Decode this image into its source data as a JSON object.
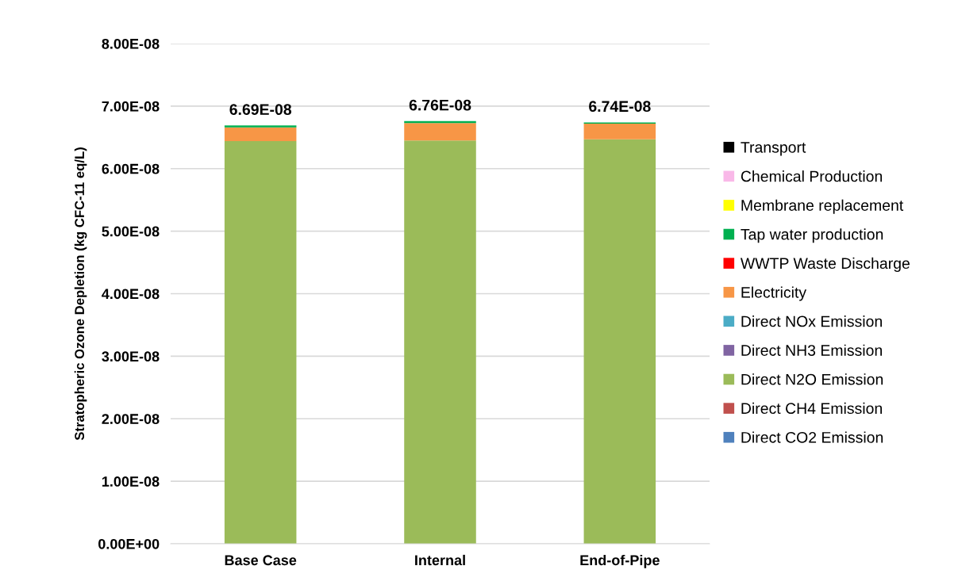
{
  "chart_data": {
    "type": "bar",
    "stacked": true,
    "ylabel": "Stratopheric Ozone Depletion (kg CFC-11 eq/L)",
    "categories": [
      "Base Case",
      "Internal",
      "End-of-Pipe"
    ],
    "series": [
      {
        "name": "Direct CO2 Emission",
        "color": "#4f81bd",
        "values": [
          0,
          0,
          0
        ]
      },
      {
        "name": "Direct CH4 Emission",
        "color": "#c0504d",
        "values": [
          0,
          0,
          0
        ]
      },
      {
        "name": "Direct N2O Emission",
        "color": "#9bbb59",
        "values": [
          6.44e-08,
          6.45e-08,
          6.47e-08
        ]
      },
      {
        "name": "Direct NH3 Emission",
        "color": "#8064a2",
        "values": [
          0,
          0,
          0
        ]
      },
      {
        "name": "Direct NOx Emission",
        "color": "#4bacc6",
        "values": [
          0,
          0,
          0
        ]
      },
      {
        "name": "Electricity",
        "color": "#f79646",
        "values": [
          2.2e-09,
          2.8e-09,
          2.5e-09
        ]
      },
      {
        "name": "WWTP Waste Discharge",
        "color": "#ff0000",
        "values": [
          0,
          0,
          0
        ]
      },
      {
        "name": "Tap water production",
        "color": "#00b050",
        "values": [
          3e-10,
          3e-10,
          2e-10
        ]
      },
      {
        "name": "Membrane replacement",
        "color": "#ffff00",
        "values": [
          0,
          0,
          0
        ]
      },
      {
        "name": "Chemical Production",
        "color": "#f9b8e8",
        "values": [
          0,
          0,
          0
        ]
      },
      {
        "name": "Transport",
        "color": "#000000",
        "values": [
          0,
          0,
          0
        ]
      }
    ],
    "totals": [
      "6.69E-08",
      "6.76E-08",
      "6.74E-08"
    ],
    "ylim": [
      0,
      8e-08
    ],
    "yticks": [
      {
        "value": 0,
        "label": "0.00E+00"
      },
      {
        "value": 1e-08,
        "label": "1.00E-08"
      },
      {
        "value": 2e-08,
        "label": "2.00E-08"
      },
      {
        "value": 3e-08,
        "label": "3.00E-08"
      },
      {
        "value": 4e-08,
        "label": "4.00E-08"
      },
      {
        "value": 5e-08,
        "label": "5.00E-08"
      },
      {
        "value": 6e-08,
        "label": "6.00E-08"
      },
      {
        "value": 7e-08,
        "label": "7.00E-08"
      },
      {
        "value": 8e-08,
        "label": "8.00E-08"
      }
    ],
    "grid": "y",
    "legend": "right"
  }
}
